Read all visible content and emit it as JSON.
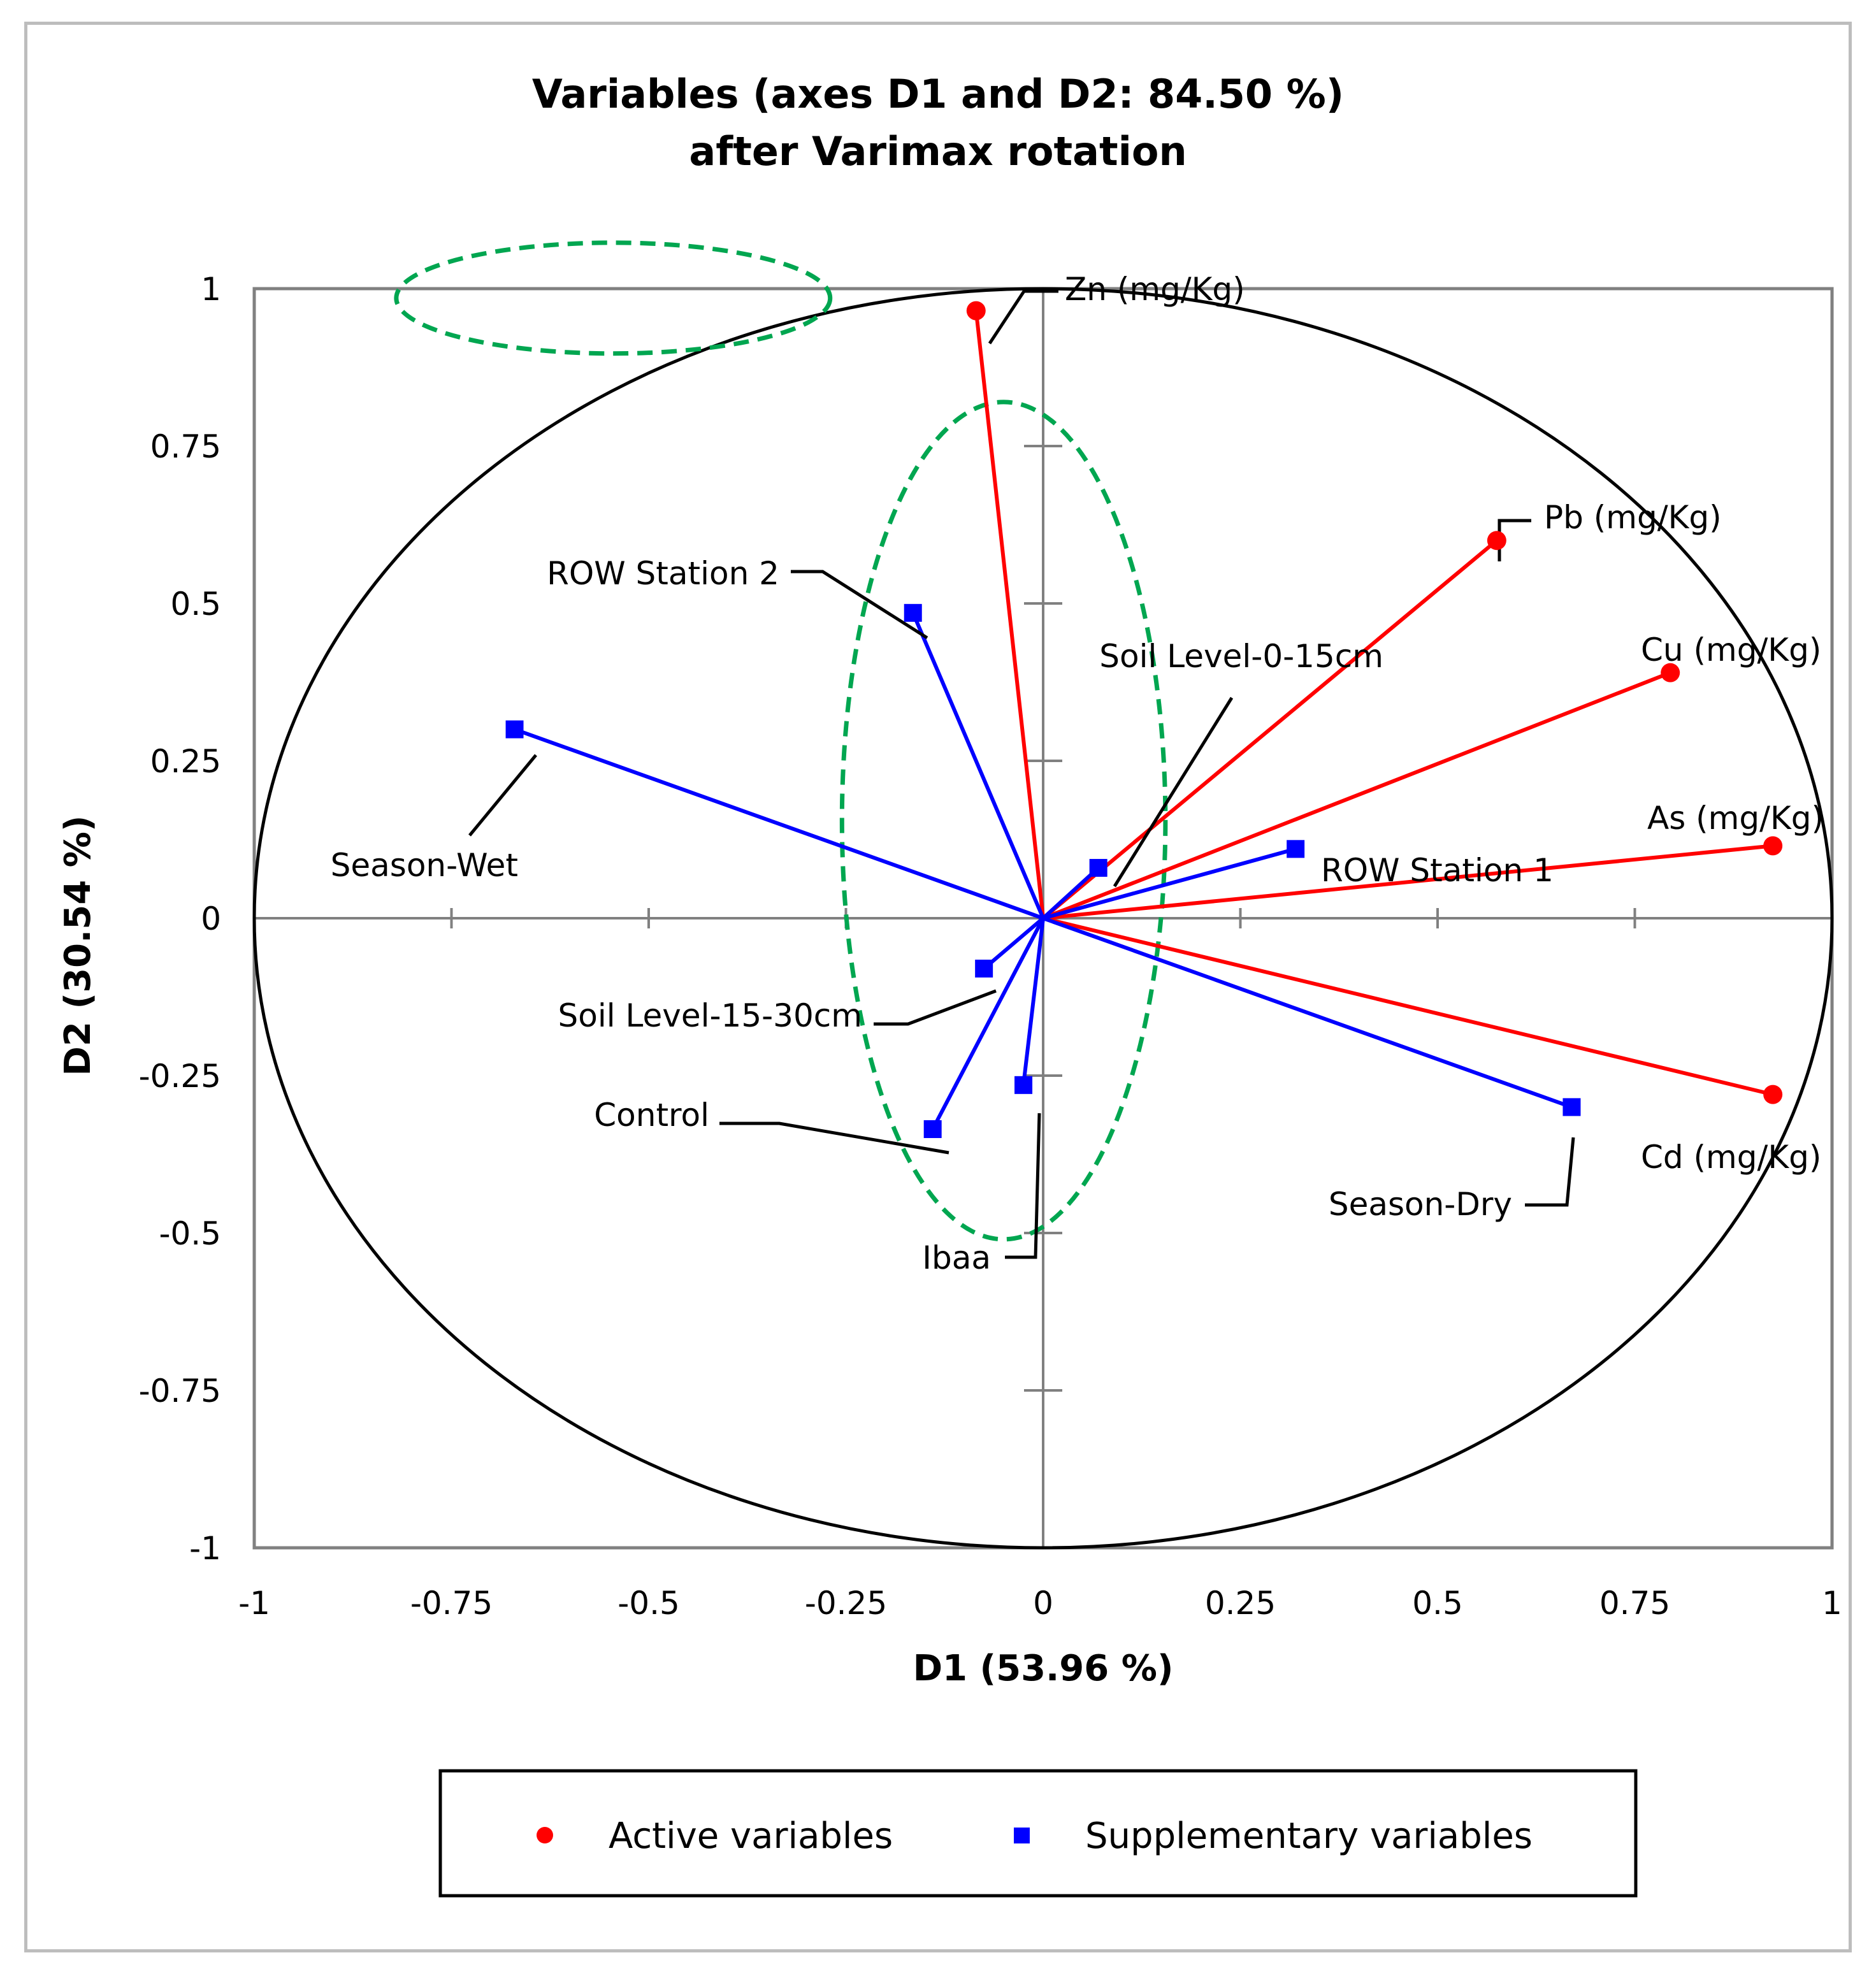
{
  "chart_data": {
    "type": "scatter",
    "title": [
      "Variables (axes D1 and D2: 84.50 %)",
      "after Varimax rotation"
    ],
    "xlabel": "D1 (53.96 %)",
    "ylabel": "D2 (30.54 %)",
    "xlim": [
      -1,
      1
    ],
    "ylim": [
      -1,
      1
    ],
    "xticks": [
      -1,
      -0.75,
      -0.5,
      -0.25,
      0,
      0.25,
      0.5,
      0.75,
      1
    ],
    "yticks": [
      -1,
      -0.75,
      -0.5,
      -0.25,
      0,
      0.25,
      0.5,
      0.75,
      1
    ],
    "tick_labels": [
      "-1",
      "-0.75",
      "-0.5",
      "-0.25",
      "0",
      "0.25",
      "0.5",
      "0.75",
      "1"
    ],
    "correlation_circle": true,
    "colors": {
      "active": "#ff0000",
      "supplementary": "#0000ff",
      "leader": "#000000",
      "highlight": "#00a650"
    },
    "series": [
      {
        "name": "Active variables",
        "marker": "circle",
        "points": [
          {
            "label": "Zn (mg/Kg)",
            "x": -0.085,
            "y": 0.965
          },
          {
            "label": "Pb (mg/Kg)",
            "x": 0.575,
            "y": 0.6
          },
          {
            "label": "Cu (mg/Kg)",
            "x": 0.795,
            "y": 0.39
          },
          {
            "label": "As (mg/Kg)",
            "x": 0.925,
            "y": 0.115
          },
          {
            "label": "Cd (mg/Kg)",
            "x": 0.925,
            "y": -0.28
          }
        ]
      },
      {
        "name": "Supplementary variables",
        "marker": "square",
        "points": [
          {
            "label": "ROW Station 2",
            "x": -0.165,
            "y": 0.485
          },
          {
            "label": "Season-Wet",
            "x": -0.67,
            "y": 0.3
          },
          {
            "label": "Soil Level-0-15cm",
            "x": 0.07,
            "y": 0.08
          },
          {
            "label": "ROW Station 1",
            "x": 0.32,
            "y": 0.11
          },
          {
            "label": "Soil Level-15-30cm",
            "x": -0.075,
            "y": -0.08
          },
          {
            "label": "Control",
            "x": -0.14,
            "y": -0.335
          },
          {
            "label": "Ibaa",
            "x": -0.025,
            "y": -0.265
          },
          {
            "label": "Season-Dry",
            "x": 0.67,
            "y": -0.3
          }
        ]
      }
    ],
    "highlight_ellipses": [
      {
        "cx": -0.545,
        "cy": 0.985,
        "rx": 0.275,
        "ry": 0.088
      },
      {
        "cx": -0.05,
        "cy": 0.155,
        "rx": 0.205,
        "ry": 0.665
      }
    ],
    "legend": {
      "position": "bottom",
      "items": [
        "Active variables",
        "Supplementary variables"
      ]
    }
  }
}
